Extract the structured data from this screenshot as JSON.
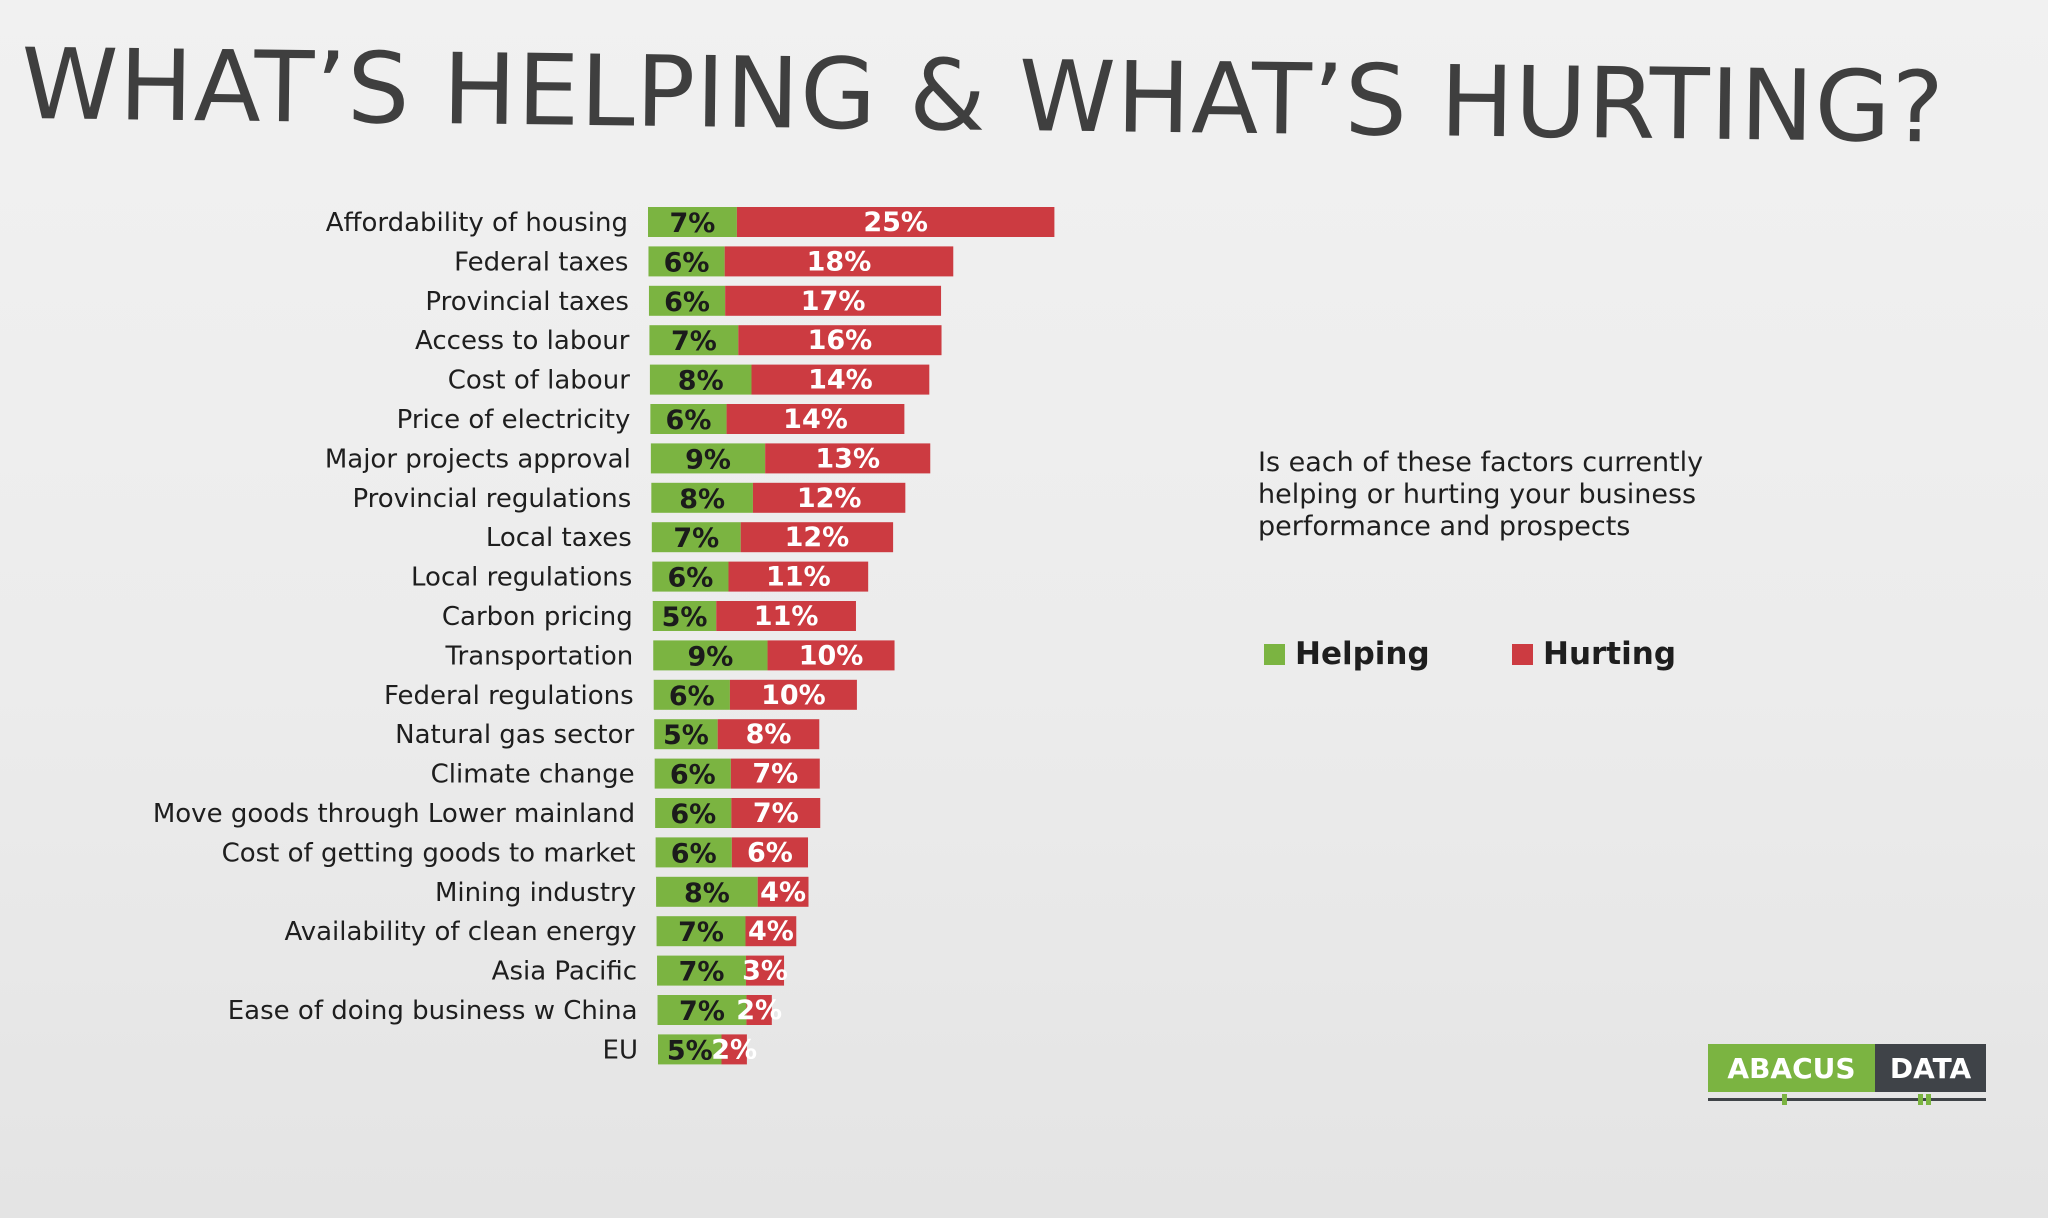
{
  "title": "WHAT’S HELPING & WHAT’S HURTING?",
  "question": "Is each of these factors currently helping or hurting your business performance and prospects",
  "legend": {
    "helping": "Helping",
    "hurting": "Hurting"
  },
  "logo": {
    "left": "ABACUS",
    "right": "DATA"
  },
  "colors": {
    "helping": "#7bb441",
    "hurting": "#cc3b41",
    "logo_dark": "#3f4348"
  },
  "chart_data": {
    "type": "bar",
    "orientation": "horizontal",
    "stacked": true,
    "categories": [
      "Affordability of housing",
      "Federal taxes",
      "Provincial taxes",
      "Access to labour",
      "Cost of labour",
      "Price of electricity",
      "Major projects approval",
      "Provincial regulations",
      "Local taxes",
      "Local regulations",
      "Carbon pricing",
      "Transportation",
      "Federal regulations",
      "Natural gas sector",
      "Climate change",
      "Move goods through Lower mainland",
      "Cost of getting goods to market",
      "Mining industry",
      "Availability of clean energy",
      "Asia Pacific",
      "Ease of doing business w China",
      "EU"
    ],
    "series": [
      {
        "name": "Helping",
        "values": [
          7,
          6,
          6,
          7,
          8,
          6,
          9,
          8,
          7,
          6,
          5,
          9,
          6,
          5,
          6,
          6,
          6,
          8,
          7,
          7,
          7,
          5
        ]
      },
      {
        "name": "Hurting",
        "values": [
          25,
          18,
          17,
          16,
          14,
          14,
          13,
          12,
          12,
          11,
          11,
          10,
          10,
          8,
          7,
          7,
          6,
          4,
          4,
          3,
          2,
          2
        ]
      }
    ],
    "value_suffix": "%",
    "legend_position": "right"
  }
}
